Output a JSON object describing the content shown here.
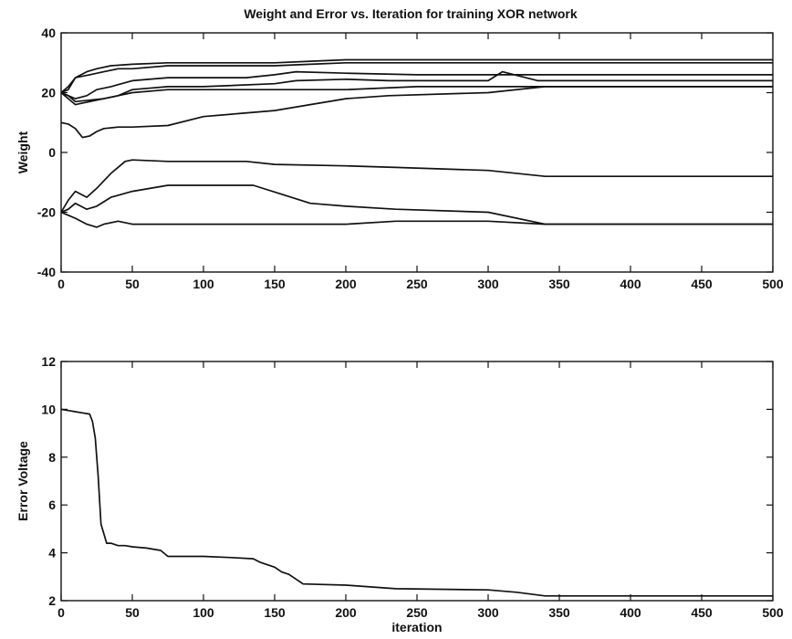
{
  "chart_data": [
    {
      "type": "line",
      "title": "Weight and Error vs. Iteration for training XOR network",
      "xlabel": "",
      "ylabel": "Weight",
      "xlim": [
        0,
        500
      ],
      "ylim": [
        -40,
        40
      ],
      "xticks": [
        0,
        50,
        100,
        150,
        200,
        250,
        300,
        350,
        400,
        450,
        500
      ],
      "yticks": [
        -40,
        -20,
        0,
        20,
        40
      ],
      "grid": false,
      "series": [
        {
          "x": [
            0,
            5,
            10,
            18,
            25,
            35,
            50,
            75,
            100,
            150,
            175,
            200,
            300,
            340,
            400,
            500
          ],
          "values": [
            20,
            21,
            25,
            27,
            28,
            29,
            29.5,
            30,
            30,
            30,
            30.5,
            31,
            31,
            31,
            31,
            31
          ]
        },
        {
          "x": [
            0,
            5,
            10,
            20,
            30,
            40,
            50,
            75,
            100,
            150,
            175,
            200,
            235,
            300,
            340,
            400,
            500
          ],
          "values": [
            20,
            22,
            25,
            26,
            27,
            28,
            28,
            29,
            29,
            29,
            29.5,
            30,
            30,
            30,
            30,
            30,
            30
          ]
        },
        {
          "x": [
            0,
            5,
            10,
            18,
            25,
            35,
            50,
            75,
            100,
            130,
            150,
            165,
            200,
            250,
            300,
            340,
            400,
            500
          ],
          "values": [
            20,
            19,
            18,
            19,
            21,
            22,
            24,
            25,
            25,
            25,
            26,
            27,
            26.5,
            26,
            26,
            26,
            26,
            26
          ]
        },
        {
          "x": [
            0,
            5,
            10,
            20,
            30,
            40,
            50,
            75,
            100,
            150,
            165,
            200,
            230,
            260,
            300,
            310,
            335,
            400,
            500
          ],
          "values": [
            20,
            19,
            17,
            17.5,
            18,
            19,
            21,
            22,
            22,
            23,
            24,
            24.5,
            24,
            24,
            24,
            27,
            24,
            24,
            24
          ]
        },
        {
          "x": [
            0,
            5,
            10,
            20,
            30,
            40,
            50,
            75,
            100,
            150,
            200,
            250,
            300,
            335,
            400,
            500
          ],
          "values": [
            20,
            18,
            16,
            17,
            18,
            19,
            20,
            21,
            21,
            21,
            21,
            22,
            22,
            22,
            22,
            22
          ]
        },
        {
          "x": [
            0,
            5,
            10,
            15,
            20,
            25,
            30,
            40,
            50,
            75,
            100,
            125,
            150,
            175,
            200,
            230,
            300,
            340,
            400,
            500
          ],
          "values": [
            10,
            9.5,
            8,
            5,
            5.5,
            7,
            8,
            8.5,
            8.5,
            9,
            12,
            13,
            14,
            16,
            18,
            19,
            20,
            22,
            22,
            22
          ]
        },
        {
          "x": [
            0,
            5,
            10,
            18,
            25,
            35,
            45,
            50,
            75,
            100,
            130,
            150,
            200,
            235,
            300,
            340,
            400,
            500
          ],
          "values": [
            -20,
            -16,
            -13,
            -15,
            -12,
            -7,
            -3,
            -2.5,
            -3,
            -3,
            -3,
            -4,
            -4.5,
            -5,
            -6,
            -8,
            -8,
            -8
          ]
        },
        {
          "x": [
            0,
            5,
            10,
            18,
            25,
            35,
            50,
            75,
            100,
            135,
            155,
            175,
            200,
            235,
            300,
            340,
            400,
            500
          ],
          "values": [
            -20,
            -19,
            -17,
            -19,
            -18,
            -15,
            -13,
            -11,
            -11,
            -11,
            -14,
            -17,
            -18,
            -19,
            -20,
            -24,
            -24,
            -24
          ]
        },
        {
          "x": [
            0,
            5,
            10,
            18,
            25,
            30,
            40,
            50,
            75,
            100,
            150,
            200,
            235,
            300,
            340,
            400,
            500
          ],
          "values": [
            -20,
            -21,
            -22,
            -24,
            -25,
            -24,
            -23,
            -24,
            -24,
            -24,
            -24,
            -24,
            -23,
            -23,
            -24,
            -24,
            -24
          ]
        }
      ]
    },
    {
      "type": "line",
      "title": "",
      "xlabel": "iteration",
      "ylabel": "Error Voltage",
      "xlim": [
        0,
        500
      ],
      "ylim": [
        2,
        12
      ],
      "xticks": [
        0,
        50,
        100,
        150,
        200,
        250,
        300,
        350,
        400,
        450,
        500
      ],
      "yticks": [
        2,
        4,
        6,
        8,
        10,
        12
      ],
      "grid": false,
      "series": [
        {
          "x": [
            0,
            5,
            10,
            15,
            20,
            22,
            24,
            26,
            28,
            30,
            32,
            35,
            40,
            45,
            50,
            60,
            70,
            75,
            100,
            120,
            135,
            140,
            145,
            150,
            155,
            160,
            165,
            170,
            200,
            235,
            300,
            320,
            340,
            400,
            500
          ],
          "values": [
            10,
            9.95,
            9.9,
            9.85,
            9.8,
            9.5,
            8.8,
            7.2,
            5.2,
            4.8,
            4.4,
            4.4,
            4.3,
            4.3,
            4.25,
            4.2,
            4.1,
            3.85,
            3.85,
            3.8,
            3.75,
            3.6,
            3.5,
            3.4,
            3.2,
            3.1,
            2.9,
            2.7,
            2.65,
            2.5,
            2.45,
            2.35,
            2.2,
            2.2,
            2.2
          ]
        }
      ]
    }
  ]
}
